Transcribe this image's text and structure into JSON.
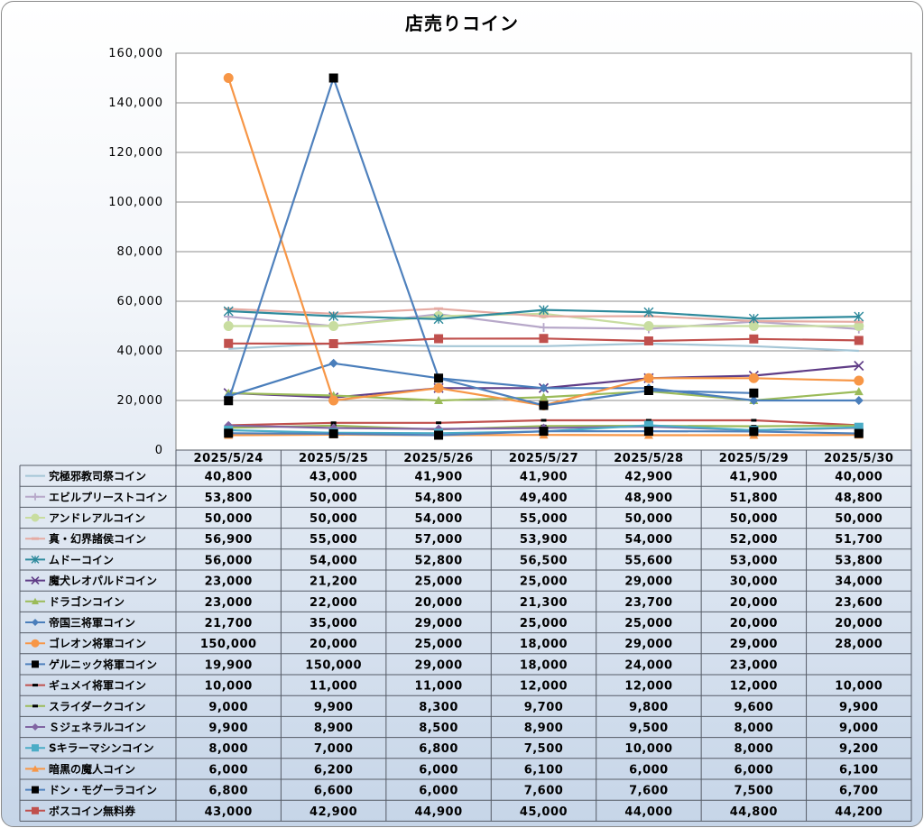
{
  "chart_data": {
    "type": "line",
    "title": "店売りコイン",
    "ylim": [
      0,
      160000
    ],
    "yticks": [
      "0",
      "20,000",
      "40,000",
      "60,000",
      "80,000",
      "100,000",
      "120,000",
      "140,000",
      "160,000"
    ],
    "grid": true,
    "legend": "data-table",
    "categories": [
      "2025/5/24",
      "2025/5/25",
      "2025/5/26",
      "2025/5/27",
      "2025/5/28",
      "2025/5/29",
      "2025/5/30"
    ],
    "series": [
      {
        "name": "究極邪教司祭コイン",
        "color": "#a5c6d6",
        "marker": "none",
        "values": [
          40800,
          43000,
          41900,
          41900,
          42900,
          41900,
          40000
        ],
        "labels": [
          "40,800",
          "43,000",
          "41,900",
          "41,900",
          "42,900",
          "41,900",
          "40,000"
        ]
      },
      {
        "name": "エビルプリーストコイン",
        "color": "#b7a8c9",
        "marker": "plus",
        "values": [
          53800,
          50000,
          54800,
          49400,
          48900,
          51800,
          48800
        ],
        "labels": [
          "53,800",
          "50,000",
          "54,800",
          "49,400",
          "48,900",
          "51,800",
          "48,800"
        ]
      },
      {
        "name": "アンドレアルコイン",
        "color": "#c8dda0",
        "marker": "circle",
        "values": [
          50000,
          50000,
          54000,
          55000,
          50000,
          50000,
          50000
        ],
        "labels": [
          "50,000",
          "50,000",
          "54,000",
          "55,000",
          "50,000",
          "50,000",
          "50,000"
        ]
      },
      {
        "name": "真・幻界諸侯コイン",
        "color": "#e5aba3",
        "marker": "dash",
        "values": [
          56900,
          55000,
          57000,
          53900,
          54000,
          52000,
          51700
        ],
        "labels": [
          "56,900",
          "55,000",
          "57,000",
          "53,900",
          "54,000",
          "52,000",
          "51,700"
        ]
      },
      {
        "name": "ムドーコイン",
        "color": "#2e8a9c",
        "marker": "star",
        "values": [
          56000,
          54000,
          52800,
          56500,
          55600,
          53000,
          53800
        ],
        "labels": [
          "56,000",
          "54,000",
          "52,800",
          "56,500",
          "55,600",
          "53,000",
          "53,800"
        ]
      },
      {
        "name": "魔犬レオパルドコイン",
        "color": "#5f3c86",
        "marker": "x",
        "values": [
          23000,
          21200,
          25000,
          25000,
          29000,
          30000,
          34000
        ],
        "labels": [
          "23,000",
          "21,200",
          "25,000",
          "25,000",
          "29,000",
          "30,000",
          "34,000"
        ]
      },
      {
        "name": "ドラゴンコイン",
        "color": "#9bbb59",
        "marker": "triangle",
        "values": [
          23000,
          22000,
          20000,
          21300,
          23700,
          20000,
          23600
        ],
        "labels": [
          "23,000",
          "22,000",
          "20,000",
          "21,300",
          "23,700",
          "20,000",
          "23,600"
        ]
      },
      {
        "name": "帝国三将軍コイン",
        "color": "#4a7ebb",
        "marker": "diamond",
        "values": [
          21700,
          35000,
          29000,
          25000,
          25000,
          20000,
          20000
        ],
        "labels": [
          "21,700",
          "35,000",
          "29,000",
          "25,000",
          "25,000",
          "20,000",
          "20,000"
        ]
      },
      {
        "name": "ゴレオン将軍コイン",
        "color": "#f79646",
        "marker": "circle",
        "values": [
          150000,
          20000,
          25000,
          18000,
          29000,
          29000,
          28000
        ],
        "labels": [
          "150,000",
          "20,000",
          "25,000",
          "18,000",
          "29,000",
          "29,000",
          "28,000"
        ]
      },
      {
        "name": "ゲルニック将軍コイン",
        "color": "#4f81bd",
        "marker": "square-black",
        "values": [
          19900,
          150000,
          29000,
          18000,
          24000,
          23000,
          null
        ],
        "labels": [
          "19,900",
          "150,000",
          "29,000",
          "18,000",
          "24,000",
          "23,000",
          ""
        ]
      },
      {
        "name": "ギュメイ将軍コイン",
        "color": "#c0504d",
        "marker": "dash-black",
        "values": [
          10000,
          11000,
          11000,
          12000,
          12000,
          12000,
          10000
        ],
        "labels": [
          "10,000",
          "11,000",
          "11,000",
          "12,000",
          "12,000",
          "12,000",
          "10,000"
        ]
      },
      {
        "name": "スライダークコイン",
        "color": "#9bbb59",
        "marker": "dash-black",
        "values": [
          9000,
          9900,
          8300,
          9700,
          9800,
          9600,
          9900
        ],
        "labels": [
          "9,000",
          "9,900",
          "8,300",
          "9,700",
          "9,800",
          "9,600",
          "9,900"
        ]
      },
      {
        "name": "Ｓジェネラルコイン",
        "color": "#8064a2",
        "marker": "diamond",
        "values": [
          9900,
          8900,
          8500,
          8900,
          9500,
          8000,
          9000
        ],
        "labels": [
          "9,900",
          "8,900",
          "8,500",
          "8,900",
          "9,500",
          "8,000",
          "9,000"
        ]
      },
      {
        "name": "Sキラーマシンコイン",
        "color": "#4bacc6",
        "marker": "square",
        "values": [
          8000,
          7000,
          6800,
          7500,
          10000,
          8000,
          9200
        ],
        "labels": [
          "8,000",
          "7,000",
          "6,800",
          "7,500",
          "10,000",
          "8,000",
          "9,200"
        ]
      },
      {
        "name": "暗黒の魔人コイン",
        "color": "#f79646",
        "marker": "triangle",
        "values": [
          6000,
          6200,
          6000,
          6100,
          6000,
          6000,
          6100
        ],
        "labels": [
          "6,000",
          "6,200",
          "6,000",
          "6,100",
          "6,000",
          "6,000",
          "6,100"
        ]
      },
      {
        "name": "ドン・モグーラコイン",
        "color": "#4f81bd",
        "marker": "square-black",
        "values": [
          6800,
          6600,
          6000,
          7600,
          7600,
          7500,
          6700
        ],
        "labels": [
          "6,800",
          "6,600",
          "6,000",
          "7,600",
          "7,600",
          "7,500",
          "6,700"
        ]
      },
      {
        "name": "ボスコイン無料券",
        "color": "#c0504d",
        "marker": "square",
        "values": [
          43000,
          42900,
          44900,
          45000,
          44000,
          44800,
          44200
        ],
        "labels": [
          "43,000",
          "42,900",
          "44,900",
          "45,000",
          "44,000",
          "44,800",
          "44,200"
        ]
      }
    ]
  }
}
